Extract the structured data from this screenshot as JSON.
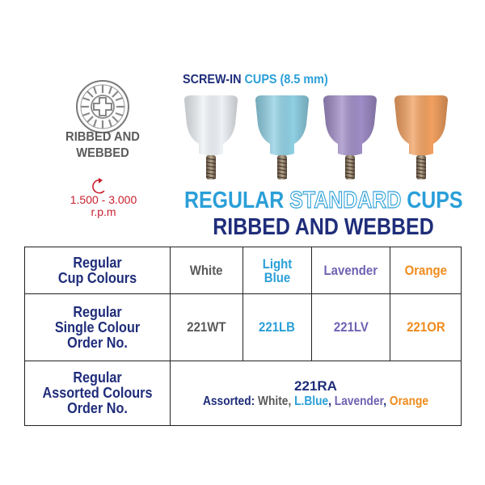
{
  "left_panel": {
    "ribbed_label_line1": "RIBBED AND",
    "ribbed_label_line2": "WEBBED",
    "rpm_line1": "1.500 - 3.000",
    "rpm_line2": "r.p.m"
  },
  "screw_in_title": {
    "part1": "SCREW-IN ",
    "part2": "CUPS (8.5 mm)"
  },
  "main_title": {
    "word1": "REGULAR ",
    "word2": "STANDARD",
    "word3": " CUPS",
    "line2": "RIBBED AND WEBBED"
  },
  "cups": [
    {
      "color": "#eef2f6",
      "name": "white-cup"
    },
    {
      "color": "#8fd0e3",
      "name": "light-blue-cup"
    },
    {
      "color": "#9f8cc6",
      "name": "lavender-cup"
    },
    {
      "color": "#f1a060",
      "name": "orange-cup"
    }
  ],
  "table": {
    "row1_header_line1": "Regular",
    "row1_header_line2": "Cup Colours",
    "colours": {
      "white": "White",
      "light_blue_line1": "Light",
      "light_blue_line2": "Blue",
      "lavender": "Lavender",
      "orange": "Orange"
    },
    "row2_header_line1": "Regular",
    "row2_header_line2": "Single Colour",
    "row2_header_line3": "Order No.",
    "codes": {
      "white": "221WT",
      "light_blue": "221LB",
      "lavender": "221LV",
      "orange": "221OR"
    },
    "row3_header_line1": "Regular",
    "row3_header_line2": "Assorted Colours",
    "row3_header_line3": "Order No.",
    "assorted_code": "221RA",
    "assorted_prefix": "Assorted: ",
    "assorted_white": "White, ",
    "assorted_lblue": "L.Blue",
    "assorted_sep1": ", ",
    "assorted_lavender": "Lavender",
    "assorted_sep2": ", ",
    "assorted_orange": "Orange"
  },
  "colors": {
    "navy": "#1f2d7a",
    "gray": "#5a5a5a",
    "blue": "#2a9fd8",
    "lavender": "#6e63b2",
    "orange": "#ef8b1c",
    "red": "#c8202e"
  }
}
